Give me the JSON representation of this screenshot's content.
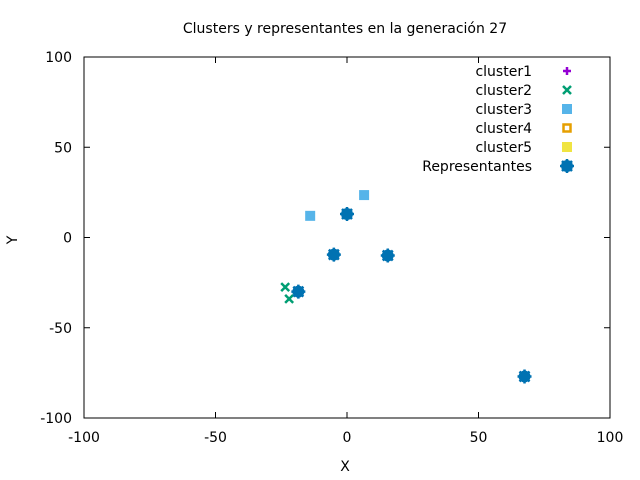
{
  "chart_data": {
    "type": "scatter",
    "title": "Clusters y representantes en la generación 27",
    "xlabel": "X",
    "ylabel": "Y",
    "xlim": [
      -100,
      100
    ],
    "ylim": [
      -100,
      100
    ],
    "xticks": [
      -100,
      -50,
      0,
      50,
      100
    ],
    "yticks": [
      -100,
      -50,
      0,
      50,
      100
    ],
    "xtick_labels": [
      "-100",
      "-50",
      "0",
      "50",
      "100"
    ],
    "ytick_labels": [
      "-100",
      "-50",
      "0",
      "50",
      "100"
    ],
    "grid": false,
    "legend_position": "top-right",
    "series": [
      {
        "name": "cluster1",
        "marker": "plus",
        "color": "#9400d3",
        "points": []
      },
      {
        "name": "cluster2",
        "marker": "cross",
        "color": "#009e73",
        "points": [
          [
            -23.5,
            -27.5
          ],
          [
            -22,
            -34
          ]
        ]
      },
      {
        "name": "cluster3",
        "marker": "square",
        "color": "#56b4e9",
        "points": [
          [
            -14,
            12
          ],
          [
            6.5,
            23.5
          ]
        ]
      },
      {
        "name": "cluster4",
        "marker": "open-square",
        "color": "#e69f00",
        "points": []
      },
      {
        "name": "cluster5",
        "marker": "square",
        "color": "#f0e442",
        "points": []
      },
      {
        "name": "Representantes",
        "marker": "big-circle",
        "color": "#0072b2",
        "points": [
          [
            -18.5,
            -30
          ],
          [
            -5,
            -9.5
          ],
          [
            0,
            13
          ],
          [
            15.5,
            -10
          ],
          [
            67.5,
            -77
          ]
        ]
      }
    ]
  }
}
